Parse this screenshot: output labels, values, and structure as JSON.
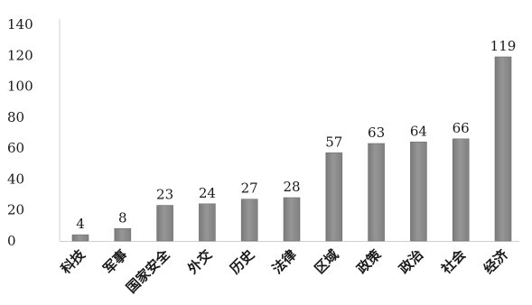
{
  "chart_data": {
    "type": "bar",
    "title": "",
    "xlabel": "",
    "ylabel": "",
    "categories": [
      "科技",
      "军事",
      "国家安全",
      "外交",
      "历史",
      "法律",
      "区域",
      "政策",
      "政治",
      "社会",
      "经济"
    ],
    "values": [
      4,
      8,
      23,
      24,
      27,
      28,
      57,
      63,
      64,
      66,
      119
    ],
    "data_labels": [
      "4",
      "8",
      "23",
      "24",
      "27",
      "28",
      "57",
      "63",
      "64",
      "66",
      "119"
    ],
    "ylim": [
      0,
      140
    ],
    "yticks": [
      0,
      20,
      40,
      60,
      80,
      100,
      120,
      140
    ],
    "ytick_labels": [
      "0",
      "20",
      "40",
      "60",
      "80",
      "100",
      "120",
      "140"
    ],
    "grid": false,
    "legend": "none",
    "bar_color": "#8c8c8c"
  }
}
